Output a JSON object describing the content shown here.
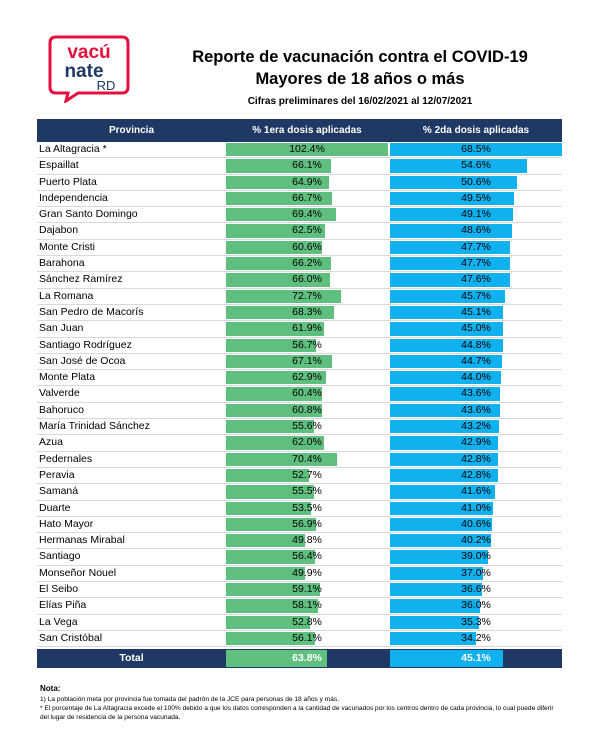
{
  "logo": {
    "line1": "vacú",
    "line2": "nate",
    "line3": "RD",
    "colors": {
      "red": "#e30f3d",
      "navy": "#1f3864"
    }
  },
  "header": {
    "title1": "Reporte de vacunación contra el COVID-19",
    "title2": "Mayores de 18 años o más",
    "subtitle": "Cifras preliminares del 16/02/2021 al 12/07/2021"
  },
  "chart_data": {
    "type": "table",
    "columns": [
      "Provincia",
      "% 1era dosis aplicadas",
      "% 2da dosis aplicadas"
    ],
    "series_colors": [
      "#5fbf7f",
      "#11b0ee"
    ],
    "rows": [
      {
        "province": "La Altagracia *",
        "dose1": 102.4,
        "dose1_label": "102.4%",
        "dose2": 68.5,
        "dose2_label": "68.5%"
      },
      {
        "province": "Espaillat",
        "dose1": 66.1,
        "dose1_label": "66.1%",
        "dose2": 54.6,
        "dose2_label": "54.6%"
      },
      {
        "province": "Puerto Plata",
        "dose1": 64.9,
        "dose1_label": "64.9%",
        "dose2": 50.6,
        "dose2_label": "50.6%"
      },
      {
        "province": "Independencia",
        "dose1": 66.7,
        "dose1_label": "66.7%",
        "dose2": 49.5,
        "dose2_label": "49.5%"
      },
      {
        "province": "Gran Santo Domingo",
        "dose1": 69.4,
        "dose1_label": "69.4%",
        "dose2": 49.1,
        "dose2_label": "49.1%"
      },
      {
        "province": "Dajabon",
        "dose1": 62.5,
        "dose1_label": "62.5%",
        "dose2": 48.6,
        "dose2_label": "48.6%"
      },
      {
        "province": "Monte Cristi",
        "dose1": 60.6,
        "dose1_label": "60.6%",
        "dose2": 47.7,
        "dose2_label": "47.7%"
      },
      {
        "province": "Barahona",
        "dose1": 66.2,
        "dose1_label": "66.2%",
        "dose2": 47.7,
        "dose2_label": "47.7%"
      },
      {
        "province": "Sánchez Ramírez",
        "dose1": 66.0,
        "dose1_label": "66.0%",
        "dose2": 47.6,
        "dose2_label": "47.6%"
      },
      {
        "province": "La Romana",
        "dose1": 72.7,
        "dose1_label": "72.7%",
        "dose2": 45.7,
        "dose2_label": "45.7%"
      },
      {
        "province": "San Pedro de Macorís",
        "dose1": 68.3,
        "dose1_label": "68.3%",
        "dose2": 45.1,
        "dose2_label": "45.1%"
      },
      {
        "province": "San Juan",
        "dose1": 61.9,
        "dose1_label": "61.9%",
        "dose2": 45.0,
        "dose2_label": "45.0%"
      },
      {
        "province": "Santiago Rodríguez",
        "dose1": 56.7,
        "dose1_label": "56.7%",
        "dose2": 44.8,
        "dose2_label": "44.8%"
      },
      {
        "province": "San José de Ocoa",
        "dose1": 67.1,
        "dose1_label": "67.1%",
        "dose2": 44.7,
        "dose2_label": "44.7%"
      },
      {
        "province": "Monte Plata",
        "dose1": 62.9,
        "dose1_label": "62.9%",
        "dose2": 44.0,
        "dose2_label": "44.0%"
      },
      {
        "province": "Valverde",
        "dose1": 60.4,
        "dose1_label": "60.4%",
        "dose2": 43.6,
        "dose2_label": "43.6%"
      },
      {
        "province": "Bahoruco",
        "dose1": 60.8,
        "dose1_label": "60.8%",
        "dose2": 43.6,
        "dose2_label": "43.6%"
      },
      {
        "province": "María Trinidad Sánchez",
        "dose1": 55.6,
        "dose1_label": "55.6%",
        "dose2": 43.2,
        "dose2_label": "43.2%"
      },
      {
        "province": "Azua",
        "dose1": 62.0,
        "dose1_label": "62.0%",
        "dose2": 42.9,
        "dose2_label": "42.9%"
      },
      {
        "province": "Pedernales",
        "dose1": 70.4,
        "dose1_label": "70.4%",
        "dose2": 42.8,
        "dose2_label": "42.8%"
      },
      {
        "province": "Peravia",
        "dose1": 52.7,
        "dose1_label": "52.7%",
        "dose2": 42.8,
        "dose2_label": "42.8%"
      },
      {
        "province": "Samaná",
        "dose1": 55.5,
        "dose1_label": "55.5%",
        "dose2": 41.6,
        "dose2_label": "41.6%"
      },
      {
        "province": "Duarte",
        "dose1": 53.5,
        "dose1_label": "53.5%",
        "dose2": 41.0,
        "dose2_label": "41.0%"
      },
      {
        "province": "Hato Mayor",
        "dose1": 56.9,
        "dose1_label": "56.9%",
        "dose2": 40.6,
        "dose2_label": "40.6%"
      },
      {
        "province": "Hermanas Mirabal",
        "dose1": 49.8,
        "dose1_label": "49.8%",
        "dose2": 40.2,
        "dose2_label": "40.2%"
      },
      {
        "province": "Santiago",
        "dose1": 56.4,
        "dose1_label": "56.4%",
        "dose2": 39.0,
        "dose2_label": "39.0%"
      },
      {
        "province": "Monseñor Nouel",
        "dose1": 49.9,
        "dose1_label": "49.9%",
        "dose2": 37.0,
        "dose2_label": "37.0%"
      },
      {
        "province": "El Seibo",
        "dose1": 59.1,
        "dose1_label": "59.1%",
        "dose2": 36.6,
        "dose2_label": "36.6%"
      },
      {
        "province": "Elías Piña",
        "dose1": 58.1,
        "dose1_label": "58.1%",
        "dose2": 36.0,
        "dose2_label": "36.0%"
      },
      {
        "province": "La Vega",
        "dose1": 52.8,
        "dose1_label": "52.8%",
        "dose2": 35.3,
        "dose2_label": "35.3%"
      },
      {
        "province": "San Cristóbal",
        "dose1": 56.1,
        "dose1_label": "56.1%",
        "dose2": 34.2,
        "dose2_label": "34.2%"
      }
    ],
    "total": {
      "province": "Total",
      "dose1": 63.8,
      "dose1_label": "63.8%",
      "dose2": 45.1,
      "dose2_label": "45.1%"
    }
  },
  "notes": {
    "title": "Nota:",
    "n1": "1) La población meta por provincia fue tomada del padrón de la JCE para personas de 18 años y más.",
    "n2": "* El porcentaje de La Altagracia excede el 100% debido a que los datos corresponden a la cantidad de vacunados por los centros dentro de cada provincia, lo cual puede diferir del lugar de residencia de la persona vacunada."
  }
}
